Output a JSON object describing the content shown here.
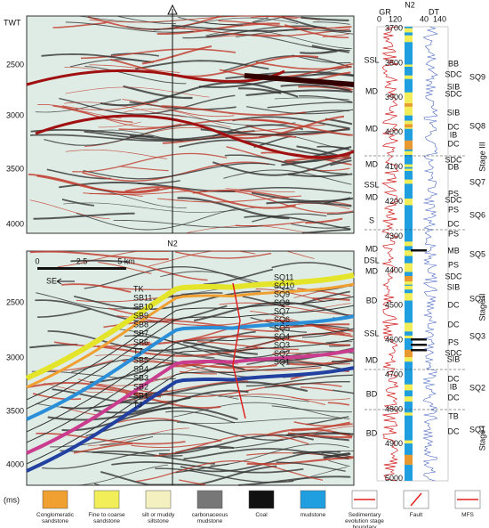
{
  "seismic_top": {
    "y_axis_title": "TWT",
    "y_ticks": [
      2500,
      3000,
      3500,
      4000
    ]
  },
  "seismic_bottom": {
    "well_name": "N2",
    "y_ticks": [
      2500,
      3000,
      3500,
      4000
    ],
    "y_unit": "(ms)",
    "scale_labels": [
      "0",
      "2.5",
      "5 km"
    ],
    "direction": "SE",
    "left_horizon_labels": [
      "TK",
      "SB11",
      "SB10",
      "SB9",
      "SB8",
      "SB7",
      "SB6",
      "T7",
      "SB5",
      "SB4",
      "SB3",
      "SB2",
      "SB1",
      "TJ"
    ],
    "right_horizon_labels": [
      "SQ11",
      "SQ10",
      "SQ9",
      "SQ8",
      "SQ7",
      "SQ6",
      "SQ5",
      "SQ4",
      "SQ3",
      "SQ2",
      "SQ1"
    ]
  },
  "well_log": {
    "name": "N2",
    "gr_label": "GR",
    "dt_label": "DT",
    "gr_range": [
      0,
      120
    ],
    "dt_range": [
      40,
      140
    ],
    "depths": [
      3700,
      3800,
      3900,
      4000,
      4100,
      4200,
      4300,
      4400,
      4500,
      4600,
      4700,
      4800,
      4900,
      5000
    ],
    "facies_left": [
      "SSL",
      "MD",
      "MD",
      "MD",
      "SSL",
      "MD",
      "S",
      "MD",
      "DSL",
      "MD",
      "BD",
      "SSL",
      "MD",
      "BD",
      "BD"
    ],
    "facies_right": [
      "BB",
      "SDC",
      "SIB",
      "SDC",
      "SIB",
      "DC",
      "IB",
      "DC",
      "SDC",
      "DB",
      "PS",
      "SDC",
      "PS",
      "DC",
      "PS",
      "MB",
      "PS",
      "SDC",
      "SIB",
      "DC",
      "DC",
      "PS",
      "SDC",
      "SIB",
      "DC",
      "IB",
      "DC",
      "TB",
      "DC"
    ],
    "sequences": [
      "SQ9",
      "SQ8",
      "SQ7",
      "SQ6",
      "SQ5",
      "SQ4",
      "SQ3",
      "SQ2",
      "SQ1"
    ],
    "stages": [
      "Stage III",
      "Stage II",
      "Stage I"
    ]
  },
  "legend": [
    "Conglomeratic sandstone",
    "Fine to coarse sandstone",
    "silt or muddy siltstone",
    "carbonaceous mudstone",
    "Coal",
    "mudstone",
    "Sedimentary evolution stage boundary",
    "Fault",
    "MFS"
  ]
}
